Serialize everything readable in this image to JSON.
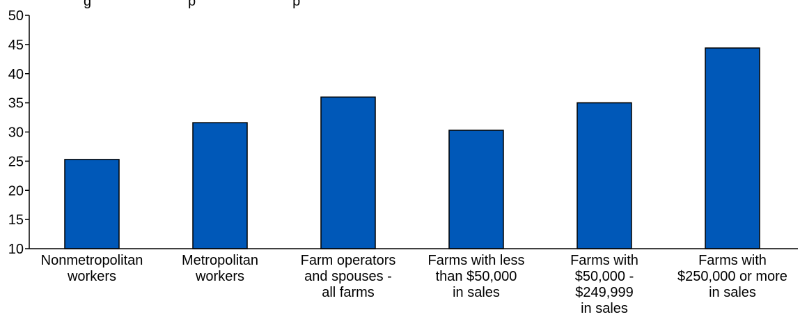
{
  "chart_data": {
    "type": "bar",
    "title_fragment": "g                         p                         p",
    "categories": [
      [
        "Nonmetropolitan",
        "workers"
      ],
      [
        "Metropolitan",
        "workers"
      ],
      [
        "Farm operators",
        "and spouses -",
        "all farms"
      ],
      [
        "Farms with less",
        "than $50,000",
        "in sales"
      ],
      [
        "Farms with",
        "$50,000 -",
        "$249,999",
        "in sales"
      ],
      [
        "Farms with",
        "$250,000 or more",
        "in sales"
      ]
    ],
    "values": [
      25.3,
      31.6,
      36.0,
      30.3,
      35.0,
      44.4
    ],
    "ylim": [
      10,
      50
    ],
    "yticks": [
      10,
      15,
      20,
      25,
      30,
      35,
      40,
      45,
      50
    ],
    "bar_color": "#0058b8",
    "bar_outline_color": "#000000",
    "grid": false,
    "xlabel": "",
    "ylabel": ""
  }
}
